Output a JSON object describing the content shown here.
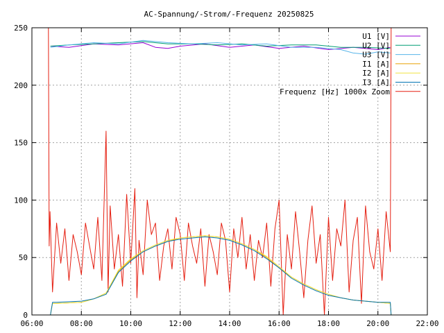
{
  "chart_data": {
    "type": "line",
    "title": "AC-Spannung/-Strom/-Frequenz 20250825",
    "xlabel": "",
    "ylabel": "",
    "xlim": [
      "06:00",
      "22:00"
    ],
    "ylim": [
      0,
      250
    ],
    "x_ticks": [
      "06:00",
      "08:00",
      "10:00",
      "12:00",
      "14:00",
      "16:00",
      "18:00",
      "20:00",
      "22:00"
    ],
    "y_ticks": [
      "0",
      "50",
      "100",
      "150",
      "200",
      "250"
    ],
    "grid": true,
    "legend_position": "top-right",
    "series": [
      {
        "name": "U1 [V]",
        "color": "#9400d3",
        "x": [
          "06:45",
          "07:30",
          "08:30",
          "09:30",
          "10:30",
          "11:00",
          "11:30",
          "12:00",
          "13:00",
          "14:00",
          "15:00",
          "16:00",
          "17:00",
          "18:00",
          "19:00",
          "20:00",
          "20:30"
        ],
        "values": [
          234,
          233,
          236,
          235,
          237,
          233,
          232,
          234,
          236,
          233,
          235,
          232,
          234,
          231,
          233,
          231,
          233
        ]
      },
      {
        "name": "U2 [V]",
        "color": "#009e73",
        "x": [
          "06:45",
          "07:30",
          "08:30",
          "09:30",
          "10:30",
          "11:30",
          "12:30",
          "13:30",
          "14:30",
          "15:30",
          "16:30",
          "17:30",
          "18:30",
          "19:30",
          "20:30"
        ],
        "values": [
          234,
          235,
          236,
          237,
          238,
          236,
          236,
          235,
          236,
          234,
          235,
          235,
          233,
          233,
          232
        ]
      },
      {
        "name": "U3 [V]",
        "color": "#56b4e9",
        "x": [
          "06:45",
          "07:30",
          "08:30",
          "09:30",
          "10:30",
          "11:30",
          "12:30",
          "13:30",
          "14:30",
          "15:30",
          "16:30",
          "17:30",
          "18:30",
          "19:00",
          "19:30",
          "20:00",
          "20:30"
        ],
        "values": [
          233,
          235,
          237,
          236,
          239,
          237,
          236,
          237,
          235,
          236,
          233,
          233,
          231,
          228,
          227,
          229,
          228
        ]
      },
      {
        "name": "I1 [A]",
        "color": "#e69f00",
        "x": [
          "06:45",
          "06:50",
          "07:00",
          "08:00",
          "08:30",
          "09:00",
          "09:30",
          "10:00",
          "10:30",
          "11:00",
          "11:30",
          "12:00",
          "12:30",
          "13:00",
          "13:30",
          "14:00",
          "14:30",
          "15:00",
          "15:30",
          "16:00",
          "16:30",
          "17:00",
          "17:30",
          "18:00",
          "18:30",
          "19:00",
          "19:30",
          "20:00",
          "20:30",
          "20:32"
        ],
        "values": [
          0,
          10,
          10,
          11,
          14,
          19,
          38,
          48,
          55,
          60,
          64,
          67,
          68,
          69,
          68,
          66,
          62,
          57,
          50,
          41,
          33,
          27,
          22,
          18,
          15,
          13,
          12,
          11,
          10,
          0
        ]
      },
      {
        "name": "I2 [A]",
        "color": "#f0e442",
        "x": [
          "06:45",
          "06:50",
          "07:00",
          "08:00",
          "08:30",
          "09:00",
          "09:30",
          "10:00",
          "10:30",
          "11:00",
          "11:30",
          "12:00",
          "12:30",
          "13:00",
          "13:30",
          "14:00",
          "14:30",
          "15:00",
          "15:30",
          "16:00",
          "16:30",
          "17:00",
          "17:30",
          "18:00",
          "18:30",
          "19:00",
          "19:30",
          "20:00",
          "20:30",
          "20:32"
        ],
        "values": [
          0,
          10,
          10,
          11,
          14,
          19,
          39,
          49,
          56,
          61,
          65,
          67,
          68,
          69,
          68,
          66,
          62,
          57,
          51,
          42,
          33,
          27,
          22,
          18,
          15,
          13,
          12,
          11,
          10,
          0
        ]
      },
      {
        "name": "I3 [A]",
        "color": "#0072b2",
        "x": [
          "06:45",
          "06:50",
          "07:00",
          "08:00",
          "08:30",
          "09:00",
          "09:30",
          "10:00",
          "10:30",
          "11:00",
          "11:30",
          "12:00",
          "12:30",
          "13:00",
          "13:30",
          "14:00",
          "14:30",
          "15:00",
          "15:30",
          "16:00",
          "16:30",
          "17:00",
          "17:30",
          "18:00",
          "18:30",
          "19:00",
          "19:30",
          "20:00",
          "20:30",
          "20:32"
        ],
        "values": [
          0,
          11,
          11,
          12,
          14,
          18,
          37,
          47,
          55,
          60,
          64,
          66,
          67,
          68,
          67,
          65,
          61,
          56,
          49,
          41,
          32,
          26,
          21,
          17,
          15,
          13,
          12,
          11,
          11,
          0
        ]
      },
      {
        "name": "Frequenz [Hz] 1000x Zoom",
        "color": "#e51e10",
        "x": [
          "06:40",
          "06:42",
          "06:44",
          "06:50",
          "07:00",
          "07:10",
          "07:20",
          "07:30",
          "07:40",
          "07:50",
          "08:00",
          "08:10",
          "08:20",
          "08:30",
          "08:40",
          "08:50",
          "09:00",
          "09:05",
          "09:10",
          "09:20",
          "09:30",
          "09:40",
          "09:50",
          "10:00",
          "10:10",
          "10:15",
          "10:20",
          "10:30",
          "10:40",
          "10:50",
          "11:00",
          "11:10",
          "11:20",
          "11:30",
          "11:40",
          "11:50",
          "12:00",
          "12:10",
          "12:20",
          "12:30",
          "12:40",
          "12:50",
          "13:00",
          "13:10",
          "13:20",
          "13:30",
          "13:40",
          "13:50",
          "14:00",
          "14:10",
          "14:20",
          "14:30",
          "14:40",
          "14:50",
          "15:00",
          "15:10",
          "15:20",
          "15:30",
          "15:40",
          "15:50",
          "16:00",
          "16:10",
          "16:20",
          "16:30",
          "16:40",
          "16:50",
          "17:00",
          "17:10",
          "17:20",
          "17:30",
          "17:40",
          "17:50",
          "18:00",
          "18:10",
          "18:20",
          "18:30",
          "18:40",
          "18:50",
          "19:00",
          "19:10",
          "19:20",
          "19:30",
          "19:40",
          "19:50",
          "20:00",
          "20:10",
          "20:20",
          "20:30",
          "20:32"
        ],
        "values": [
          250,
          60,
          90,
          20,
          80,
          45,
          75,
          30,
          70,
          55,
          35,
          80,
          60,
          40,
          85,
          30,
          160,
          20,
          95,
          40,
          70,
          25,
          105,
          45,
          110,
          15,
          65,
          35,
          100,
          70,
          80,
          30,
          60,
          75,
          40,
          85,
          70,
          30,
          80,
          60,
          45,
          75,
          25,
          70,
          55,
          35,
          80,
          65,
          20,
          75,
          50,
          85,
          40,
          70,
          30,
          65,
          50,
          80,
          25,
          75,
          100,
          0,
          70,
          40,
          90,
          55,
          15,
          65,
          95,
          45,
          70,
          0,
          85,
          30,
          75,
          60,
          100,
          20,
          65,
          85,
          10,
          95,
          55,
          40,
          75,
          30,
          90,
          55,
          250
        ]
      }
    ]
  }
}
